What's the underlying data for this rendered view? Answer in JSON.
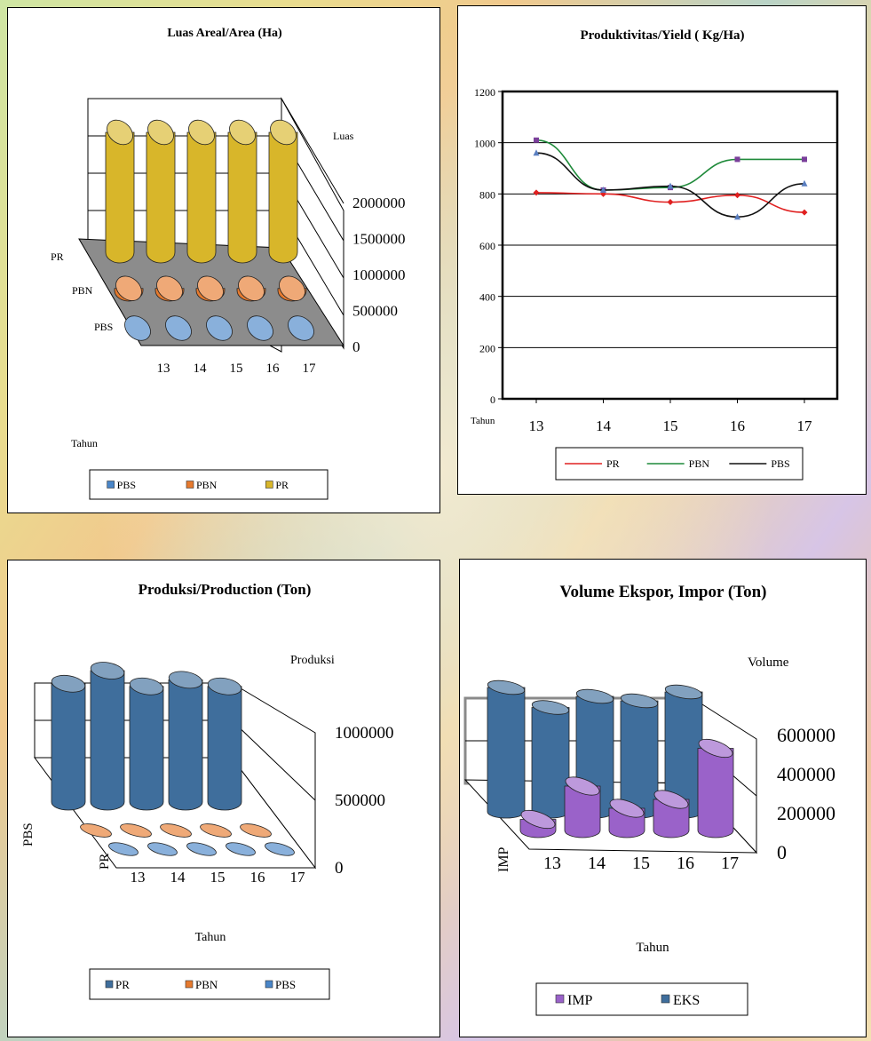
{
  "chart_data": [
    {
      "type": "bar",
      "title": "Luas Areal/Area (Ha)",
      "zlabel": "Luas",
      "xlabel": "Tahun",
      "categories": [
        "13",
        "14",
        "15",
        "16",
        "17"
      ],
      "series": [
        {
          "name": "PBS",
          "values": [
            20000,
            20000,
            20000,
            20000,
            20000
          ]
        },
        {
          "name": "PBN",
          "values": [
            30000,
            30000,
            30000,
            30000,
            30000
          ]
        },
        {
          "name": "PR",
          "values": [
            1800000,
            1800000,
            1800000,
            1800000,
            1800000
          ]
        }
      ],
      "zlim": [
        0,
        2000000
      ],
      "zticks": [
        "0",
        "500000",
        "1000000",
        "1500000",
        "2000000"
      ],
      "legend": [
        "PBS",
        "PBN",
        "PR"
      ],
      "colors": {
        "PBS": "#4a86c8",
        "PBN": "#e67a2e",
        "PR": "#d8b62a"
      }
    },
    {
      "type": "line",
      "title": "Produktivitas/Yield ( Kg/Ha)",
      "xlabel": "Tahun",
      "x": [
        "13",
        "14",
        "15",
        "16",
        "17"
      ],
      "series": [
        {
          "name": "PR",
          "values": [
            805,
            800,
            768,
            795,
            728
          ]
        },
        {
          "name": "PBN",
          "values": [
            1010,
            815,
            825,
            935,
            935
          ]
        },
        {
          "name": "PBS",
          "values": [
            960,
            815,
            830,
            710,
            840
          ]
        }
      ],
      "ylim": [
        0,
        1200
      ],
      "yticks": [
        "0",
        "200",
        "400",
        "600",
        "800",
        "1000",
        "1200"
      ],
      "legend": [
        "PR",
        "PBN",
        "PBS"
      ],
      "colors": {
        "PR": "#e02020",
        "PBN": "#1f8a3a",
        "PBS": "#111111"
      }
    },
    {
      "type": "bar",
      "title": "Produksi/Production (Ton)",
      "zlabel": "Produksi",
      "xlabel": "Tahun",
      "categories": [
        "13",
        "14",
        "15",
        "16",
        "17"
      ],
      "series": [
        {
          "name": "PR",
          "values": [
            900000,
            1000000,
            880000,
            930000,
            880000
          ]
        },
        {
          "name": "PBN",
          "values": [
            10000,
            10000,
            10000,
            10000,
            10000
          ]
        },
        {
          "name": "PBS",
          "values": [
            10000,
            10000,
            10000,
            10000,
            10000
          ]
        }
      ],
      "zlim": [
        0,
        1000000
      ],
      "zticks": [
        "0",
        "500000",
        "1000000"
      ],
      "axis_series_labels": [
        "PBS",
        "PR"
      ],
      "legend": [
        "PR",
        "PBN",
        "PBS"
      ],
      "colors": {
        "PR": "#3f6e9c",
        "PBN": "#e67a2e",
        "PBS": "#4a86c8"
      }
    },
    {
      "type": "bar",
      "title": "Volume Ekspor,  Impor (Ton)",
      "zlabel": "Volume",
      "xlabel": "Tahun",
      "categories": [
        "13",
        "14",
        "15",
        "16",
        "17"
      ],
      "series": [
        {
          "name": "EKS",
          "values": [
            560000,
            470000,
            520000,
            500000,
            540000
          ]
        },
        {
          "name": "IMP",
          "values": [
            50000,
            200000,
            100000,
            140000,
            370000
          ]
        }
      ],
      "zlim": [
        0,
        600000
      ],
      "zticks": [
        "0",
        "200000",
        "400000",
        "600000"
      ],
      "axis_series_labels": [
        "IMP"
      ],
      "legend": [
        "IMP",
        "EKS"
      ],
      "colors": {
        "EKS": "#3f6e9c",
        "IMP": "#9a62c9"
      }
    }
  ]
}
